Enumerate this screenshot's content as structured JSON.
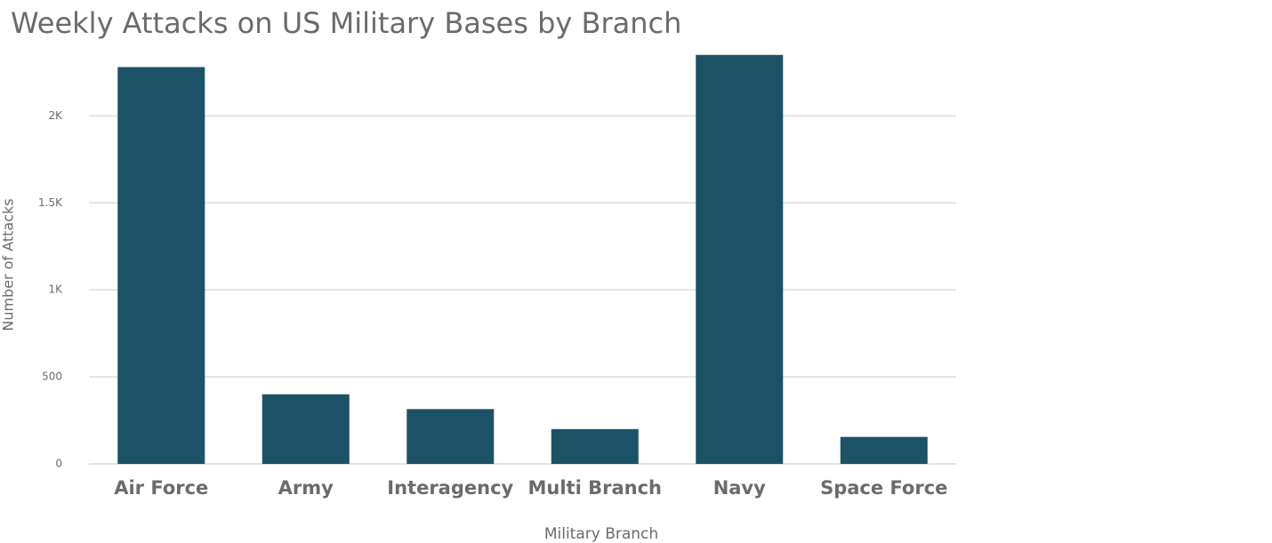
{
  "chart_data": {
    "type": "bar",
    "title": "Weekly Attacks on US Military Bases by Branch",
    "x_label": "Military Branch",
    "y_label": "Number of Attacks",
    "categories": [
      "Air Force",
      "Army",
      "Interagency",
      "Multi Branch",
      "Navy",
      "Space Force"
    ],
    "values": [
      2280,
      400,
      315,
      200,
      2350,
      155
    ],
    "color": "#1c5266",
    "ylim": [
      0,
      2400
    ],
    "yticks": [
      0,
      500,
      {
        "value": 1000,
        "label": "1K"
      },
      {
        "value": 1500,
        "label": "1.5K"
      },
      {
        "value": 2000,
        "label": "2K"
      }
    ],
    "grid": true
  }
}
